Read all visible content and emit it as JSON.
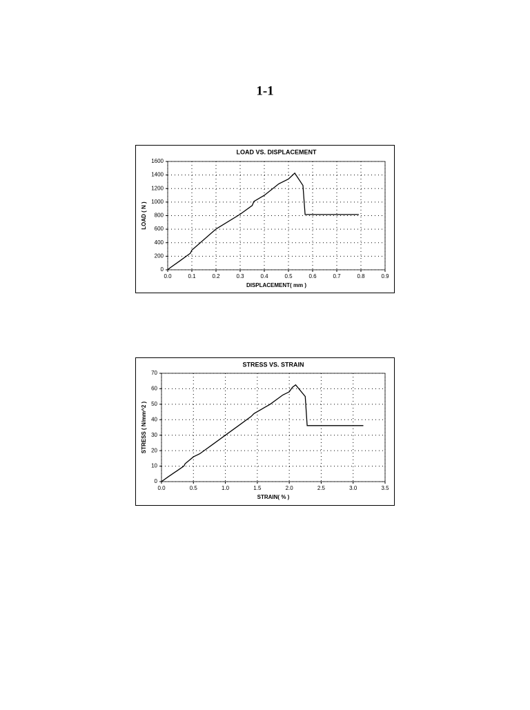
{
  "heading": "1-1",
  "chart_data": [
    {
      "type": "line",
      "title": "LOAD VS. DISPLACEMENT",
      "x_label": "DISPLACEMENT( mm )",
      "y_label": "LOAD ( N )",
      "x": [
        0,
        0.01,
        0.05,
        0.094,
        0.1,
        0.2,
        0.3,
        0.35,
        0.357,
        0.4,
        0.46,
        0.5,
        0.526,
        0.56,
        0.569,
        0.791
      ],
      "values": [
        0,
        30,
        130,
        245,
        290,
        602,
        820,
        950,
        1010,
        1100,
        1270,
        1340,
        1428,
        1245,
        816,
        816
      ],
      "color": "#000000",
      "xlim": [
        0,
        0.9
      ],
      "xticks": [
        {
          "value": 0,
          "label": "0.0"
        },
        {
          "value": 0.1,
          "label": "0.1"
        },
        {
          "value": 0.2,
          "label": "0.2"
        },
        {
          "value": 0.3,
          "label": "0.3"
        },
        {
          "value": 0.4,
          "label": "0.4"
        },
        {
          "value": 0.5,
          "label": "0.5"
        },
        {
          "value": 0.6,
          "label": "0.6"
        },
        {
          "value": 0.7,
          "label": "0.7"
        },
        {
          "value": 0.8,
          "label": "0.8"
        },
        {
          "value": 0.9,
          "label": "0.9"
        }
      ],
      "ylim": [
        0,
        1600
      ],
      "yticks": [
        0,
        200,
        400,
        600,
        800,
        1000,
        1200,
        1400,
        1600
      ],
      "grid": true
    },
    {
      "type": "line",
      "title": "STRESS VS. STRAIN",
      "x_label": "STRAIN( % )",
      "y_label": "STRESS ( N/mm^2 )",
      "x": [
        0,
        0.1,
        0.35,
        0.37,
        0.5,
        0.6,
        0.8,
        1.0,
        1.2,
        1.4,
        1.45,
        1.7,
        1.9,
        2.0,
        2.05,
        2.1,
        2.25,
        2.28,
        3.16
      ],
      "values": [
        0,
        3,
        10,
        11.6,
        16,
        18,
        24,
        30,
        36,
        42,
        44,
        50,
        56,
        58,
        61,
        62.5,
        55,
        36.2,
        36.2
      ],
      "color": "#000000",
      "xlim": [
        0,
        3.5
      ],
      "xticks": [
        {
          "value": 0,
          "label": "0.0"
        },
        {
          "value": 0.5,
          "label": "0.5"
        },
        {
          "value": 1,
          "label": "1.0"
        },
        {
          "value": 1.5,
          "label": "1.5"
        },
        {
          "value": 2,
          "label": "2.0"
        },
        {
          "value": 2.5,
          "label": "2.5"
        },
        {
          "value": 3,
          "label": "3.0"
        },
        {
          "value": 3.5,
          "label": "3.5"
        }
      ],
      "ylim": [
        0,
        70
      ],
      "yticks": [
        0,
        10,
        20,
        30,
        40,
        50,
        60,
        70
      ],
      "grid": true
    }
  ]
}
